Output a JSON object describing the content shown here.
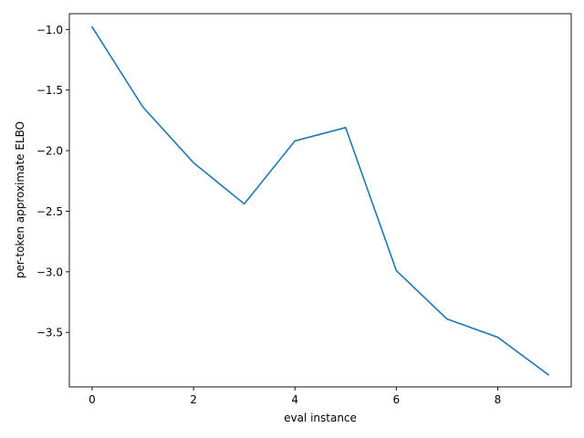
{
  "chart_data": {
    "type": "line",
    "title": "",
    "xlabel": "eval instance",
    "ylabel": "per-token approximate ELBO",
    "xlim": [
      -0.45,
      9.45
    ],
    "ylim": [
      -3.95,
      -0.87
    ],
    "xticks": [
      0,
      2,
      4,
      6,
      8
    ],
    "yticks": [
      -1.0,
      -1.5,
      -2.0,
      -2.5,
      -3.0,
      -3.5
    ],
    "xtick_labels": [
      "0",
      "2",
      "4",
      "6",
      "8"
    ],
    "ytick_labels": [
      "−1.0",
      "−1.5",
      "−2.0",
      "−2.5",
      "−3.0",
      "−3.5"
    ],
    "grid": false,
    "legend": "none",
    "series": [
      {
        "color": "#1f77b4",
        "x": [
          0,
          1,
          2,
          3,
          4,
          5,
          6,
          7,
          8,
          9
        ],
        "y": [
          -0.98,
          -1.64,
          -2.1,
          -2.44,
          -1.92,
          -1.81,
          -2.99,
          -3.39,
          -3.54,
          -3.85
        ]
      }
    ]
  }
}
